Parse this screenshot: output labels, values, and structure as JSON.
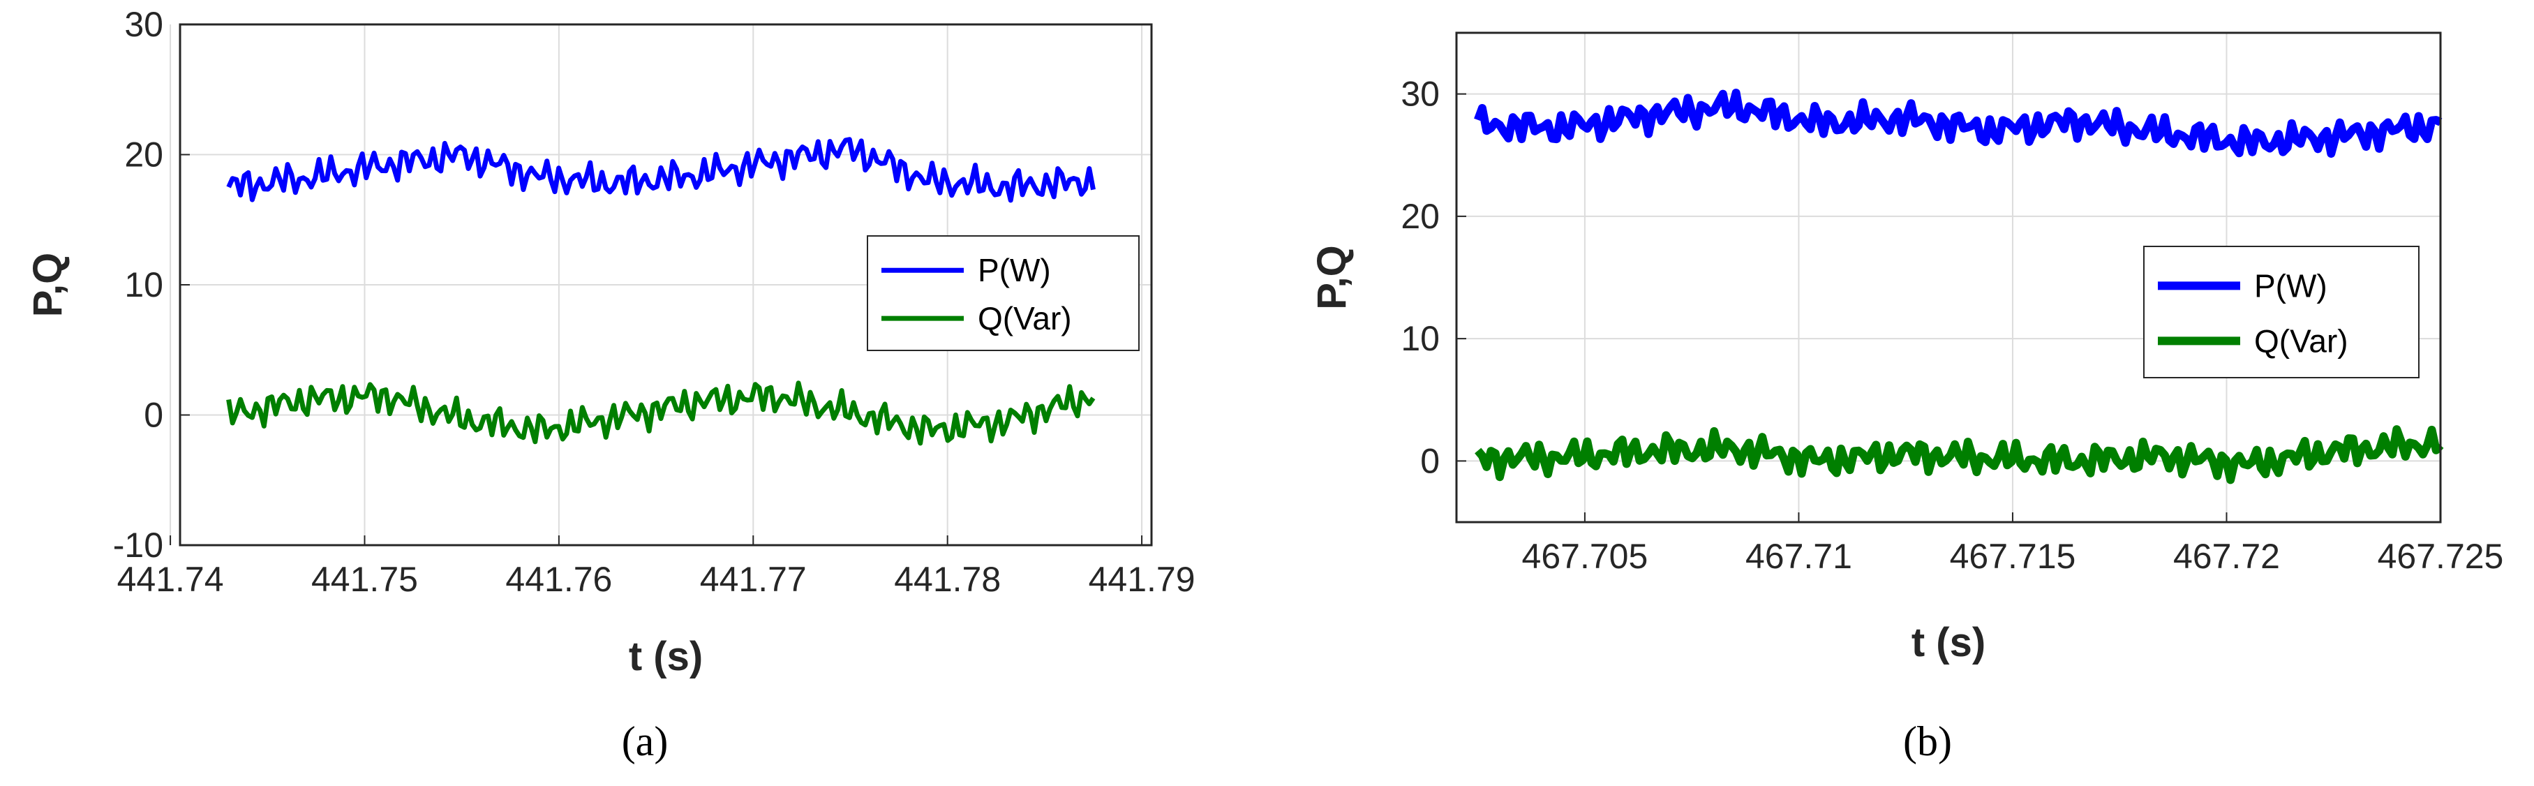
{
  "chart_data": [
    {
      "type": "line",
      "panel_label": "(a)",
      "xlabel": "t (s)",
      "ylabel": "P,Q",
      "xlim": [
        441.7405,
        441.7905
      ],
      "ylim": [
        -10,
        30
      ],
      "xticks": [
        "441.74",
        "441.75",
        "441.76",
        "441.77",
        "441.78",
        "441.79"
      ],
      "yticks": [
        "-10",
        "0",
        "10",
        "20",
        "30"
      ],
      "grid": true,
      "legend_position": "right",
      "series": [
        {
          "name": "P(W)",
          "color": "#0000ff",
          "x": [
            441.743,
            441.747,
            441.751,
            441.755,
            441.759,
            441.763,
            441.767,
            441.771,
            441.775,
            441.779,
            441.783,
            441.7875
          ],
          "y": [
            17.5,
            18.2,
            19.2,
            20.0,
            18.3,
            17.8,
            18.4,
            19.5,
            20.5,
            18.0,
            17.5,
            18.0
          ]
        },
        {
          "name": "Q(Var)",
          "color": "#007f00",
          "x": [
            441.743,
            441.747,
            441.751,
            441.755,
            441.759,
            441.763,
            441.767,
            441.771,
            441.775,
            441.779,
            441.783,
            441.7875
          ],
          "y": [
            0.0,
            1.2,
            1.5,
            -0.3,
            -1.2,
            -0.2,
            1.0,
            1.5,
            0.2,
            -1.2,
            -0.5,
            1.5
          ]
        }
      ]
    },
    {
      "type": "line",
      "panel_label": "(b)",
      "xlabel": "t (s)",
      "ylabel": "P,Q",
      "xlim": [
        467.702,
        467.725
      ],
      "ylim": [
        -5,
        35
      ],
      "xticks": [
        "467.705",
        "467.71",
        "467.715",
        "467.72",
        "467.725"
      ],
      "yticks": [
        "0",
        "10",
        "20",
        "30"
      ],
      "grid": true,
      "legend_position": "right",
      "series": [
        {
          "name": "P(W)",
          "color": "#0000ff",
          "x": [
            467.7025,
            467.7045,
            467.7065,
            467.7085,
            467.7105,
            467.7125,
            467.7145,
            467.7165,
            467.7185,
            467.7205,
            467.7225,
            467.725
          ],
          "y": [
            27.5,
            27.2,
            28.3,
            29.0,
            27.6,
            28.0,
            27.0,
            27.8,
            26.8,
            26.0,
            26.5,
            27.5
          ]
        },
        {
          "name": "Q(Var)",
          "color": "#007f00",
          "x": [
            467.7025,
            467.7045,
            467.7065,
            467.7085,
            467.7105,
            467.7125,
            467.7145,
            467.7165,
            467.7185,
            467.7205,
            467.7225,
            467.725
          ],
          "y": [
            0.2,
            0.3,
            0.8,
            1.0,
            0.0,
            0.6,
            0.2,
            0.0,
            0.4,
            -0.3,
            0.8,
            1.5
          ]
        }
      ]
    }
  ]
}
